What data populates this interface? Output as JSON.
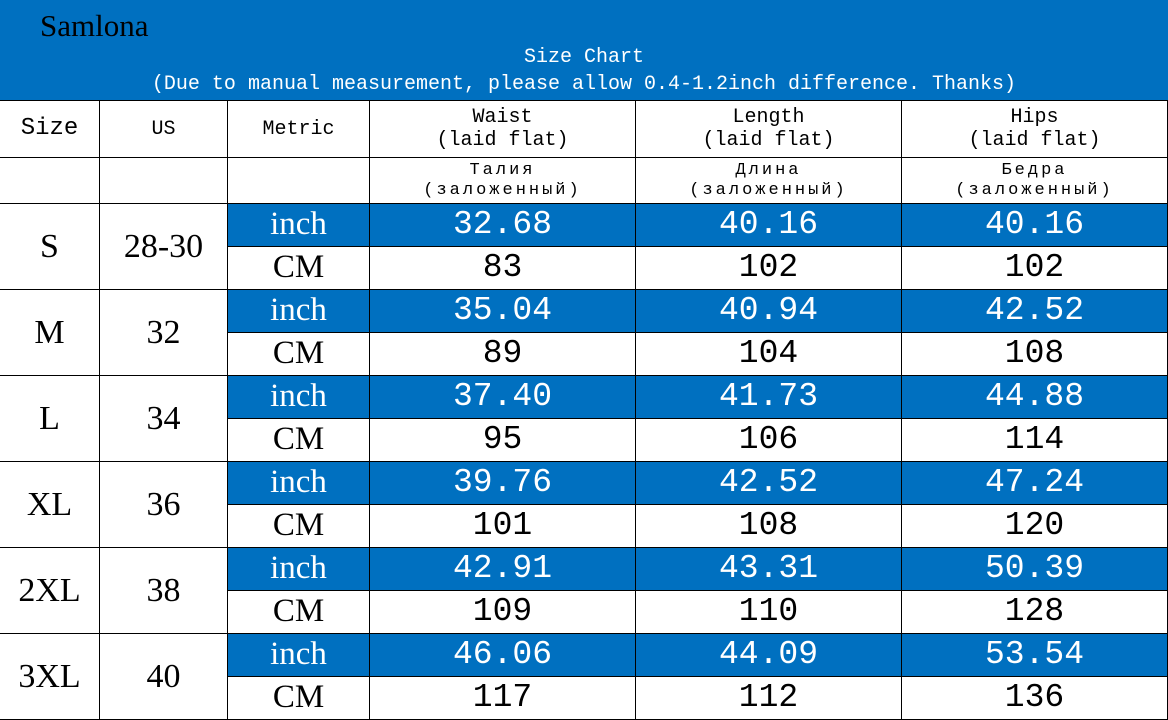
{
  "header": {
    "brand": "Samlona",
    "title": "Size Chart",
    "note": "(Due to manual measurement, please allow 0.4-1.2inch difference. Thanks)"
  },
  "table": {
    "columns": [
      {
        "en": [
          "Size"
        ]
      },
      {
        "en": [
          "US"
        ]
      },
      {
        "en": [
          "Metric"
        ]
      },
      {
        "en": [
          "Waist",
          "(laid flat)"
        ],
        "ru": [
          "Талия",
          "(заложенный)"
        ]
      },
      {
        "en": [
          "Length",
          "(laid flat)"
        ],
        "ru": [
          "Длина",
          "(заложенный)"
        ]
      },
      {
        "en": [
          "Hips",
          "(laid flat)"
        ],
        "ru": [
          "Бедра",
          "(заложенный)"
        ]
      }
    ],
    "rows": [
      {
        "size": "S",
        "us": "28-30",
        "inch": {
          "unit": "inch",
          "values": [
            "32.68",
            "40.16",
            "40.16"
          ]
        },
        "cm": {
          "unit": "CM",
          "values": [
            "83",
            "102",
            "102"
          ]
        }
      },
      {
        "size": "M",
        "us": "32",
        "inch": {
          "unit": "inch",
          "values": [
            "35.04",
            "40.94",
            "42.52"
          ]
        },
        "cm": {
          "unit": "CM",
          "values": [
            "89",
            "104",
            "108"
          ]
        }
      },
      {
        "size": "L",
        "us": "34",
        "inch": {
          "unit": "inch",
          "values": [
            "37.40",
            "41.73",
            "44.88"
          ]
        },
        "cm": {
          "unit": "CM",
          "values": [
            "95",
            "106",
            "114"
          ]
        }
      },
      {
        "size": "XL",
        "us": "36",
        "inch": {
          "unit": "inch",
          "values": [
            "39.76",
            "42.52",
            "47.24"
          ]
        },
        "cm": {
          "unit": "CM",
          "values": [
            "101",
            "108",
            "120"
          ]
        }
      },
      {
        "size": "2XL",
        "us": "38",
        "inch": {
          "unit": "inch",
          "values": [
            "42.91",
            "43.31",
            "50.39"
          ]
        },
        "cm": {
          "unit": "CM",
          "values": [
            "109",
            "110",
            "128"
          ]
        }
      },
      {
        "size": "3XL",
        "us": "40",
        "inch": {
          "unit": "inch",
          "values": [
            "46.06",
            "44.09",
            "53.54"
          ]
        },
        "cm": {
          "unit": "CM",
          "values": [
            "117",
            "112",
            "136"
          ]
        }
      }
    ]
  }
}
